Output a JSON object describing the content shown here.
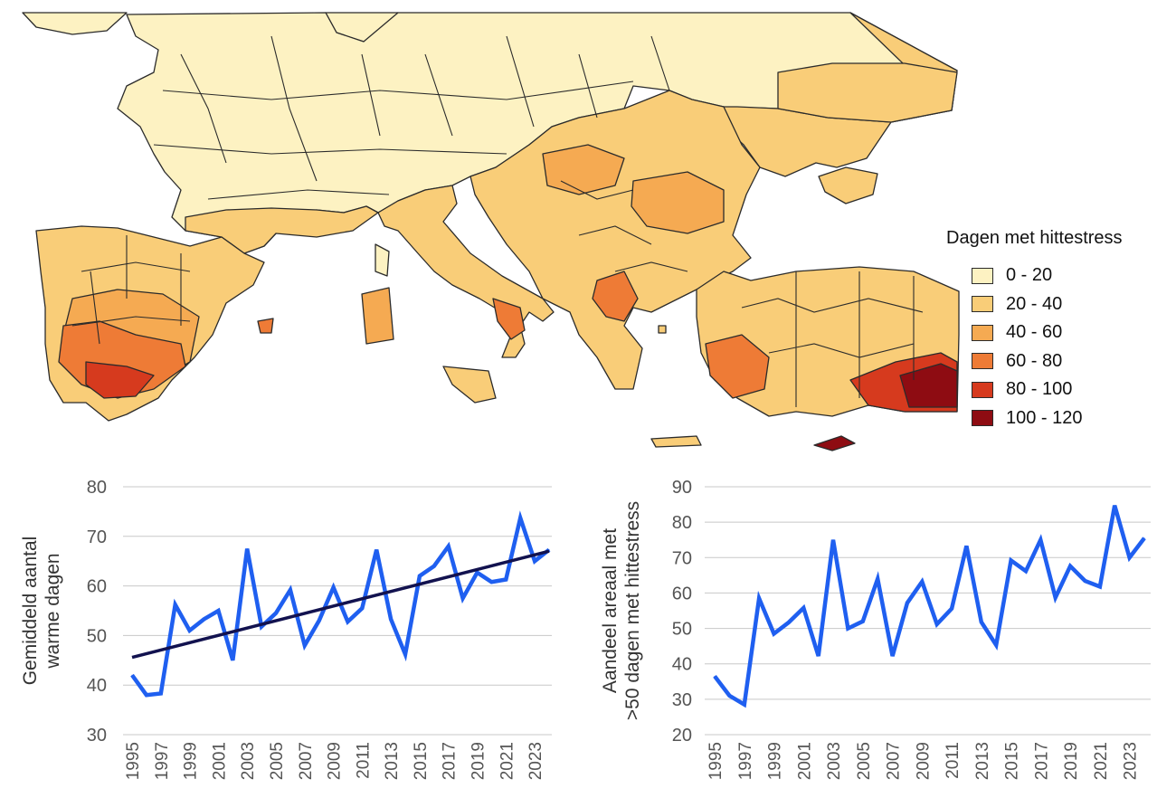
{
  "map": {
    "legend": {
      "title": "Dagen met hittestress",
      "items": [
        {
          "label": "0 - 20",
          "color": "#fdf2c2"
        },
        {
          "label": "20 - 40",
          "color": "#f9cd78"
        },
        {
          "label": "40 - 60",
          "color": "#f5aa52"
        },
        {
          "label": "60 - 80",
          "color": "#ee7b36"
        },
        {
          "label": "80 - 100",
          "color": "#d63a1e"
        },
        {
          "label": "100 - 120",
          "color": "#8e0c12"
        }
      ]
    }
  },
  "chart_data": [
    {
      "type": "line",
      "ylabel": "Gemiddeld aantal warme dagen",
      "xlabel": "",
      "ylim": [
        30,
        80
      ],
      "yticks": [
        30,
        40,
        50,
        60,
        70,
        80
      ],
      "grid": true,
      "x": [
        1995,
        1996,
        1997,
        1998,
        1999,
        2000,
        2001,
        2002,
        2003,
        2004,
        2005,
        2006,
        2007,
        2008,
        2009,
        2010,
        2011,
        2012,
        2013,
        2014,
        2015,
        2016,
        2017,
        2018,
        2019,
        2020,
        2021,
        2022,
        2023,
        2024
      ],
      "xtick_labels": [
        "1995",
        "1997",
        "1999",
        "2001",
        "2003",
        "2005",
        "2007",
        "2009",
        "2011",
        "2013",
        "2015",
        "2017",
        "2019",
        "2021",
        "2023"
      ],
      "series": [
        {
          "values": [
            42,
            38,
            38.3,
            56.2,
            51,
            53.3,
            55,
            45,
            67.5,
            51.8,
            54.5,
            59.2,
            48,
            53,
            59.7,
            52.8,
            55.5,
            67.3,
            53.3,
            46.2,
            62,
            64,
            68,
            57.5,
            62.7,
            60.8,
            61.3,
            73.7,
            65,
            67.3
          ],
          "color": "#1f5ff0"
        },
        {
          "values_trend": [
            45.6,
            67.0
          ],
          "color": "#12124f"
        }
      ]
    },
    {
      "type": "line",
      "ylabel": "Aandeel areaal met >50 dagen met hittestress",
      "xlabel": "",
      "ylim": [
        20,
        90
      ],
      "yticks": [
        20,
        30,
        40,
        50,
        60,
        70,
        80,
        90
      ],
      "grid": true,
      "x": [
        1995,
        1996,
        1997,
        1998,
        1999,
        2000,
        2001,
        2002,
        2003,
        2004,
        2005,
        2006,
        2007,
        2008,
        2009,
        2010,
        2011,
        2012,
        2013,
        2014,
        2015,
        2016,
        2017,
        2018,
        2019,
        2020,
        2021,
        2022,
        2023,
        2024
      ],
      "xtick_labels": [
        "1995",
        "1997",
        "1999",
        "2001",
        "2003",
        "2005",
        "2007",
        "2009",
        "2011",
        "2013",
        "2015",
        "2017",
        "2019",
        "2021",
        "2023"
      ],
      "series": [
        {
          "values": [
            36.5,
            31,
            28.5,
            58.5,
            48.5,
            51.7,
            55.8,
            42.2,
            75,
            50,
            52,
            64,
            42.2,
            57.2,
            63.2,
            51.2,
            55.6,
            73.3,
            51.8,
            45.3,
            69.2,
            66.2,
            75,
            58.7,
            67.6,
            63.4,
            61.8,
            84.7,
            70,
            75.5
          ],
          "color": "#1f5ff0"
        }
      ]
    }
  ]
}
